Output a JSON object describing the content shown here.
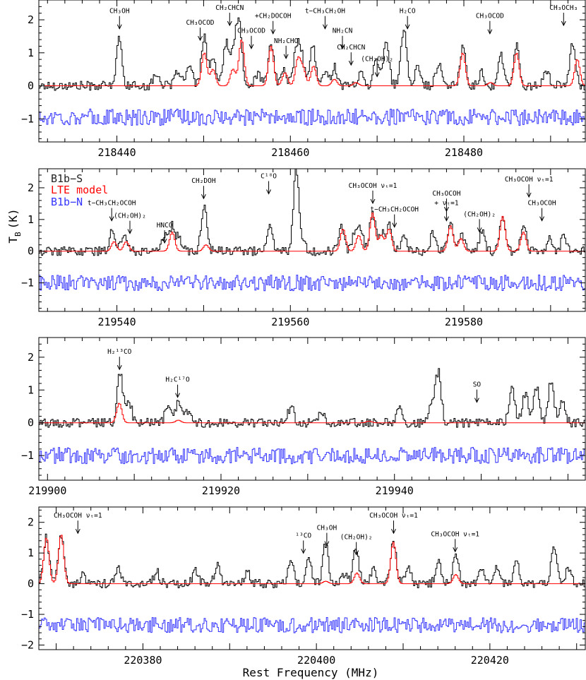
{
  "chart_data": {
    "type": "line",
    "xlabel": "Rest Frequency (MHz)",
    "ylabel": "T_B (K)",
    "ylabel_text": "T",
    "ylabel_sub": "B",
    "ylabel_unit": "(K)",
    "legend": [
      {
        "name": "B1b−S",
        "color": "#000000"
      },
      {
        "name": "LTE model",
        "color": "#ff0000"
      },
      {
        "name": "B1b−N",
        "color": "#3333ff"
      }
    ],
    "colors": {
      "observed": "#000000",
      "model": "#ff0000",
      "reference": "#3333ff"
    },
    "panels": [
      {
        "xlim": [
          218431,
          218494
        ],
        "ylim": [
          -1.7,
          2.6
        ],
        "xticks": [
          218440,
          218460,
          218480
        ],
        "yticks": [
          -1,
          0,
          1,
          2
        ],
        "peaks_observed": [
          [
            218440.2,
            1.4
          ],
          [
            218444.5,
            0.4
          ],
          [
            218447.0,
            0.5
          ],
          [
            218448.3,
            0.6
          ],
          [
            218450.0,
            1.5
          ],
          [
            218451.0,
            0.8
          ],
          [
            218452.5,
            1.3
          ],
          [
            218453.4,
            1.0
          ],
          [
            218454.0,
            1.9
          ],
          [
            218456.2,
            0.4
          ],
          [
            218457.7,
            1.3
          ],
          [
            218459.2,
            0.5
          ],
          [
            218460.6,
            1.1
          ],
          [
            218461.2,
            0.9
          ],
          [
            218462.5,
            1.2
          ],
          [
            218463.9,
            0.4
          ],
          [
            218465.0,
            0.6
          ],
          [
            218468.0,
            0.4
          ],
          [
            218469.8,
            0.9
          ],
          [
            218471.0,
            1.4
          ],
          [
            218473.0,
            1.7
          ],
          [
            218474.6,
            0.6
          ],
          [
            218477.0,
            0.7
          ],
          [
            218479.8,
            1.2
          ],
          [
            218482.0,
            0.4
          ],
          [
            218484.2,
            0.9
          ],
          [
            218486.0,
            1.2
          ],
          [
            218489.5,
            0.5
          ],
          [
            218492.5,
            1.3
          ]
        ],
        "peaks_model": [
          [
            218450.0,
            1.0
          ],
          [
            218451.0,
            0.5
          ],
          [
            218453.3,
            0.5
          ],
          [
            218454.3,
            1.4
          ],
          [
            218457.7,
            1.2
          ],
          [
            218459.3,
            0.4
          ],
          [
            218460.8,
            0.8
          ],
          [
            218461.4,
            0.5
          ],
          [
            218462.6,
            0.6
          ],
          [
            218465.0,
            0.2
          ],
          [
            218467.5,
            0.1
          ],
          [
            218479.8,
            1.0
          ],
          [
            218483.0,
            0.1
          ],
          [
            218486.0,
            1.0
          ],
          [
            218493.0,
            0.8
          ]
        ],
        "ref_baseline": -0.95,
        "labels": [
          {
            "text": "CH₃OH",
            "x": 218440.3,
            "yt": 2.2,
            "ya": 1.85,
            "ye": 1.5
          },
          {
            "text": "CH₃OCOD",
            "x": 218449.6,
            "yt": 1.85,
            "lines": [
              [
                218446.5,
                0.95,
                218446.5,
                1.7,
                218455.0,
                1.7,
                218455.0,
                1.5
              ]
            ]
          },
          {
            "text": "CH₂CHCN",
            "x": 218453.0,
            "yt": 2.3
          },
          {
            "text": "+CH₂DOCOH",
            "x": 218458.0,
            "yt": 2.05
          },
          {
            "text": "CH₃OCOD",
            "x": 218455.5,
            "yt": 1.6
          },
          {
            "text": "NH₂CHO",
            "x": 218459.5,
            "yt": 1.3
          },
          {
            "text": "t−CH₃CH₂OH",
            "x": 218464.0,
            "yt": 2.2
          },
          {
            "text": "NH₂CN",
            "x": 218466.0,
            "yt": 1.6
          },
          {
            "text": "CH₂CHCN",
            "x": 218467.0,
            "yt": 1.1
          },
          {
            "text": "(CH₂OH)₂",
            "x": 218470.0,
            "yt": 0.75
          },
          {
            "text": "H₂CO",
            "x": 218473.5,
            "yt": 2.2
          },
          {
            "text": "CH₃OCOD",
            "x": 218483.0,
            "yt": 2.05
          },
          {
            "text": "CH₃OCH₃",
            "x": 218491.5,
            "yt": 2.3
          }
        ]
      },
      {
        "xlim": [
          219531,
          219594
        ],
        "ylim": [
          -1.9,
          2.6
        ],
        "xticks": [
          219540,
          219560,
          219580
        ],
        "yticks": [
          -1,
          0,
          1,
          2
        ],
        "peaks_observed": [
          [
            219539.4,
            0.7
          ],
          [
            219540.8,
            0.6
          ],
          [
            219545.4,
            0.5
          ],
          [
            219546.3,
            0.8
          ],
          [
            219547.1,
            0.4
          ],
          [
            219550.0,
            1.5
          ],
          [
            219557.6,
            0.8
          ],
          [
            219560.6,
            2.6
          ],
          [
            219561.4,
            0.3
          ],
          [
            219565.8,
            0.8
          ],
          [
            219567.4,
            0.6
          ],
          [
            219568.0,
            0.7
          ],
          [
            219569.4,
            1.2
          ],
          [
            219570.4,
            0.6
          ],
          [
            219571.3,
            0.8
          ],
          [
            219573.0,
            0.4
          ],
          [
            219576.4,
            0.6
          ],
          [
            219578.4,
            0.9
          ],
          [
            219579.7,
            0.5
          ],
          [
            219582.0,
            0.6
          ],
          [
            219584.4,
            1.1
          ],
          [
            219586.8,
            0.8
          ],
          [
            219589.8,
            0.4
          ],
          [
            219591.5,
            0.5
          ]
        ],
        "peaks_model": [
          [
            219539.6,
            0.3
          ],
          [
            219541.0,
            0.3
          ],
          [
            219546.3,
            0.6
          ],
          [
            219550.2,
            0.2
          ],
          [
            219566.0,
            0.7
          ],
          [
            219567.8,
            0.5
          ],
          [
            219569.4,
            1.2
          ],
          [
            219570.4,
            0.5
          ],
          [
            219571.3,
            0.7
          ],
          [
            219578.4,
            0.8
          ],
          [
            219579.6,
            0.4
          ],
          [
            219584.4,
            1.1
          ],
          [
            219586.8,
            0.6
          ]
        ],
        "ref_baseline": -1.0,
        "labels": [
          {
            "text": "t−CH₃CH₂OCOH",
            "x": 219539.4,
            "yt": 1.45
          },
          {
            "text": "(CH₂OH)₂",
            "x": 219541.5,
            "yt": 1.05
          },
          {
            "text": "HNCO",
            "x": 219545.5,
            "yt": 0.75
          },
          {
            "text": "CH₂DOH",
            "x": 219550.0,
            "yt": 2.15
          },
          {
            "text": "C¹⁸O",
            "x": 219557.5,
            "yt": 2.3
          },
          {
            "text": "CH₃OCOH νₜ=1",
            "x": 219569.5,
            "yt": 2.0
          },
          {
            "text": "t−CH₃CH₂OCOH",
            "x": 219572.0,
            "yt": 1.25
          },
          {
            "text": "CH₃OCOH",
            "x": 219578.0,
            "yt": 1.75
          },
          {
            "text": "+ νₜ=1",
            "x": 219578.0,
            "yt": 1.45
          },
          {
            "text": "(CH₂OH)₂",
            "x": 219581.8,
            "yt": 1.1
          },
          {
            "text": "CH₃OCOH νₜ=1",
            "x": 219587.5,
            "yt": 2.2
          },
          {
            "text": "CH₃OCOH",
            "x": 219589.0,
            "yt": 1.45
          }
        ]
      },
      {
        "xlim": [
          219899,
          219962
        ],
        "ylim": [
          -1.75,
          2.6
        ],
        "xticks": [
          219900,
          219920,
          219940
        ],
        "yticks": [
          -1,
          0,
          1,
          2
        ],
        "peaks_observed": [
          [
            219908.3,
            1.5
          ],
          [
            219909.3,
            0.7
          ],
          [
            219913.8,
            0.5
          ],
          [
            219915.0,
            0.6
          ],
          [
            219916.0,
            0.4
          ],
          [
            219928.0,
            0.5
          ],
          [
            219931.5,
            0.4
          ],
          [
            219940.5,
            0.5
          ],
          [
            219944.3,
            0.6
          ],
          [
            219945.0,
            1.5
          ],
          [
            219953.5,
            1.1
          ],
          [
            219955.0,
            0.9
          ],
          [
            219956.3,
            1.1
          ],
          [
            219958.0,
            1.3
          ],
          [
            219959.3,
            0.7
          ]
        ],
        "peaks_model": [
          [
            219908.2,
            0.6
          ],
          [
            219915.0,
            0.08
          ],
          [
            219937.0,
            0.05
          ]
        ],
        "ref_baseline": -1.0,
        "labels": [
          {
            "text": "H₂¹³CO",
            "x": 219908.3,
            "yt": 2.1
          },
          {
            "text": "H₂C¹⁷O",
            "x": 219915.0,
            "yt": 1.25
          },
          {
            "text": "SO",
            "x": 219949.5,
            "yt": 1.1
          }
        ]
      },
      {
        "xlim": [
          220368,
          220431
        ],
        "ylim": [
          -2.15,
          2.5
        ],
        "xticks": [
          220380,
          220400,
          220420
        ],
        "yticks": [
          -2,
          -1,
          0,
          1,
          2
        ],
        "peaks_observed": [
          [
            220368.8,
            1.5
          ],
          [
            220370.5,
            1.6
          ],
          [
            220373.0,
            0.3
          ],
          [
            220377.0,
            0.5
          ],
          [
            220381.5,
            0.4
          ],
          [
            220386.0,
            0.4
          ],
          [
            220388.5,
            0.6
          ],
          [
            220392.0,
            0.4
          ],
          [
            220397.0,
            0.7
          ],
          [
            220399.0,
            0.8
          ],
          [
            220401.0,
            1.3
          ],
          [
            220403.2,
            0.3
          ],
          [
            220404.5,
            1.2
          ],
          [
            220406.5,
            0.5
          ],
          [
            220408.8,
            1.4
          ],
          [
            220410.5,
            0.5
          ],
          [
            220414.0,
            0.7
          ],
          [
            220416.0,
            0.9
          ],
          [
            220419.0,
            0.5
          ],
          [
            220420.8,
            0.6
          ],
          [
            220423.0,
            0.7
          ],
          [
            220427.3,
            1.2
          ],
          [
            220429.0,
            0.5
          ]
        ],
        "peaks_model": [
          [
            220368.8,
            1.5
          ],
          [
            220370.5,
            1.6
          ],
          [
            220401.0,
            0.08
          ],
          [
            220404.6,
            0.35
          ],
          [
            220408.8,
            1.35
          ],
          [
            220416.0,
            0.3
          ]
        ],
        "ref_baseline": -1.35,
        "labels": [
          {
            "text": "CH₃OCOH νₜ=1",
            "x": 220372.5,
            "yt": 2.15
          },
          {
            "text": "¹³CO",
            "x": 220398.5,
            "yt": 1.5
          },
          {
            "text": "CH₃OH",
            "x": 220401.2,
            "yt": 1.75
          },
          {
            "text": "(CH₂OH)₂",
            "x": 220404.6,
            "yt": 1.45
          },
          {
            "text": "CH₃OCOH νₜ=1",
            "x": 220408.9,
            "yt": 2.15
          },
          {
            "text": "CH₃OCOH νₜ=1",
            "x": 220416.0,
            "yt": 1.55
          }
        ]
      }
    ]
  }
}
